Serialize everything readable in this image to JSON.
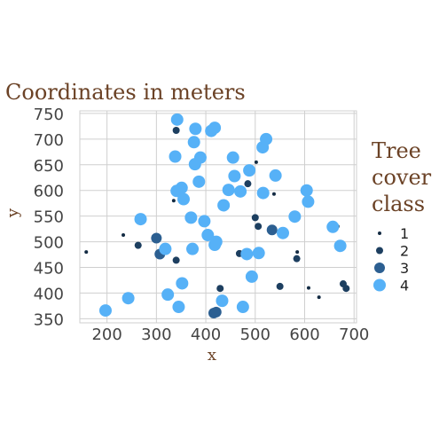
{
  "chart_data": {
    "type": "scatter",
    "title": "Coordinates in meters",
    "xlabel": "x",
    "ylabel": "y",
    "xlim": [
      145,
      705
    ],
    "ylim": [
      342,
      755
    ],
    "x_ticks": [
      200,
      300,
      400,
      500,
      600,
      700
    ],
    "y_ticks": [
      350,
      400,
      450,
      500,
      550,
      600,
      650,
      700,
      750
    ],
    "grid": true,
    "legend": {
      "title_lines": [
        "Tree",
        "cover",
        "class"
      ],
      "placement": "right",
      "entries": [
        "1",
        "2",
        "3",
        "4"
      ]
    },
    "class_colors": {
      "1": "#132b43",
      "2": "#1d3f60",
      "3": "#2c5f91",
      "4": "#56b1f7"
    },
    "series": [
      {
        "name": "1",
        "points": [
          [
            158,
            480
          ],
          [
            233,
            513
          ],
          [
            335,
            580
          ],
          [
            502,
            655
          ],
          [
            538,
            593
          ],
          [
            585,
            480
          ],
          [
            608,
            410
          ],
          [
            629,
            392
          ],
          [
            667,
            530
          ]
        ]
      },
      {
        "name": "2",
        "points": [
          [
            263,
            493
          ],
          [
            340,
            717
          ],
          [
            340,
            464
          ],
          [
            429,
            409
          ],
          [
            468,
            477
          ],
          [
            485,
            613
          ],
          [
            500,
            547
          ],
          [
            506,
            530
          ],
          [
            550,
            413
          ],
          [
            584,
            467
          ],
          [
            678,
            418
          ],
          [
            684,
            409
          ]
        ]
      },
      {
        "name": "3",
        "points": [
          [
            300,
            507
          ],
          [
            307,
            476
          ],
          [
            416,
            361
          ],
          [
            421,
            363
          ],
          [
            534,
            523
          ]
        ]
      },
      {
        "name": "4",
        "points": [
          [
            197,
            366
          ],
          [
            243,
            390
          ],
          [
            268,
            544
          ],
          [
            318,
            486
          ],
          [
            323,
            397
          ],
          [
            338,
            666
          ],
          [
            342,
            738
          ],
          [
            341,
            599
          ],
          [
            345,
            373
          ],
          [
            351,
            605
          ],
          [
            352,
            419
          ],
          [
            355,
            583
          ],
          [
            370,
            547
          ],
          [
            373,
            486
          ],
          [
            376,
            694
          ],
          [
            378,
            651
          ],
          [
            379,
            720
          ],
          [
            386,
            617
          ],
          [
            389,
            664
          ],
          [
            397,
            540
          ],
          [
            404,
            513
          ],
          [
            411,
            716
          ],
          [
            418,
            722
          ],
          [
            418,
            494
          ],
          [
            421,
            500
          ],
          [
            433,
            385
          ],
          [
            436,
            571
          ],
          [
            446,
            601
          ],
          [
            455,
            664
          ],
          [
            458,
            628
          ],
          [
            470,
            598
          ],
          [
            475,
            373
          ],
          [
            483,
            476
          ],
          [
            488,
            639
          ],
          [
            493,
            432
          ],
          [
            507,
            478
          ],
          [
            515,
            684
          ],
          [
            516,
            595
          ],
          [
            522,
            700
          ],
          [
            541,
            629
          ],
          [
            556,
            517
          ],
          [
            580,
            549
          ],
          [
            604,
            600
          ],
          [
            607,
            578
          ],
          [
            657,
            529
          ],
          [
            672,
            492
          ]
        ]
      }
    ]
  }
}
